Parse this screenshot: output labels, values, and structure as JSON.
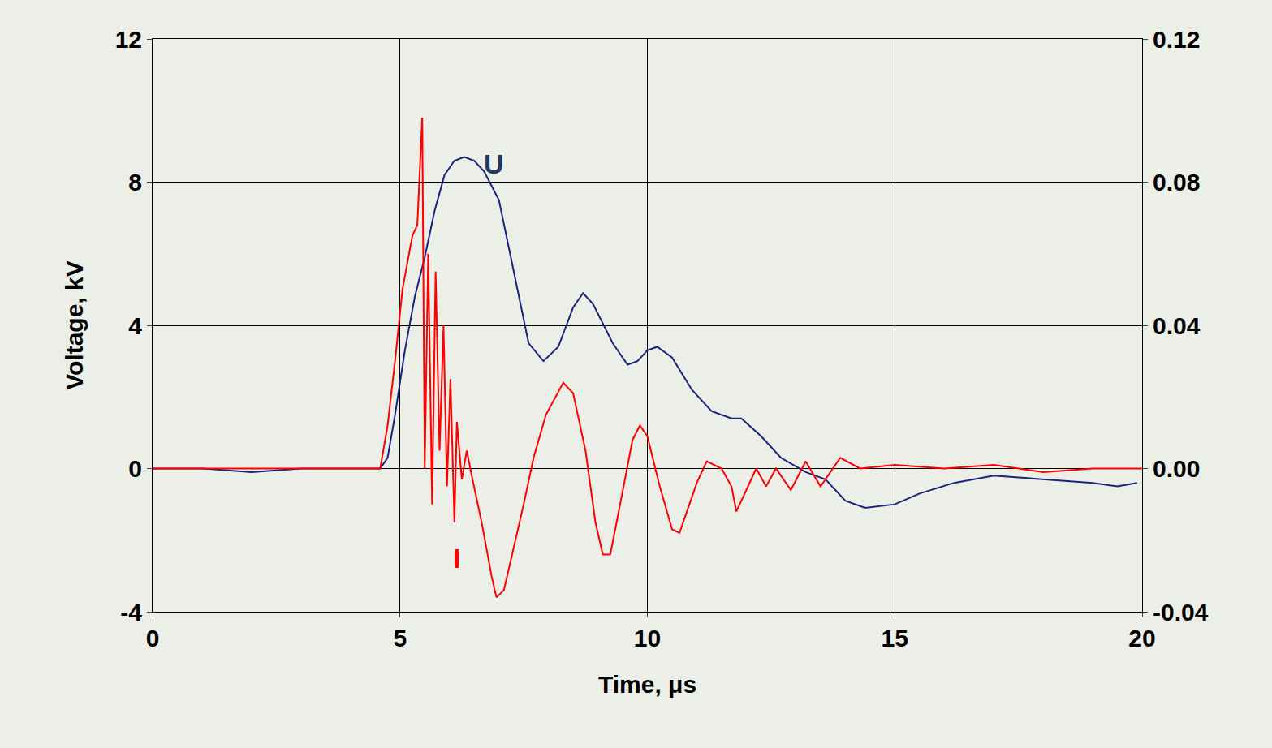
{
  "chart_data": {
    "type": "line",
    "x_label": "Time, μs",
    "y_label": "Voltage, kV",
    "xlim": [
      0,
      20
    ],
    "xticks": [
      0,
      5,
      10,
      15,
      20
    ],
    "ylim": [
      -4,
      12
    ],
    "yticks": [
      -4,
      0,
      4,
      8,
      12
    ],
    "y2lim": [
      -0.04,
      0.12
    ],
    "y2ticks": [
      -0.04,
      {
        "value": 0,
        "label": "0.00"
      },
      0.04,
      0.08,
      0.12
    ],
    "grid": true,
    "series": [
      {
        "color": "#1a237e",
        "axis": "y",
        "x": [
          0,
          1,
          2,
          3,
          4,
          4.6,
          4.75,
          4.9,
          5.1,
          5.3,
          5.5,
          5.7,
          5.9,
          6.1,
          6.3,
          6.5,
          6.7,
          7.0,
          7.3,
          7.6,
          7.9,
          8.2,
          8.5,
          8.7,
          8.9,
          9.3,
          9.6,
          9.8,
          10.0,
          10.2,
          10.5,
          10.9,
          11.3,
          11.7,
          11.9,
          12.3,
          12.7,
          13.2,
          13.6,
          14.0,
          14.4,
          15.0,
          15.5,
          16.2,
          17.0,
          18.0,
          19.0,
          19.5,
          19.9
        ],
        "values": [
          0,
          0,
          -0.1,
          0,
          0,
          0,
          0.3,
          1.5,
          3.3,
          4.8,
          5.9,
          7.2,
          8.2,
          8.6,
          8.7,
          8.6,
          8.3,
          7.5,
          5.5,
          3.5,
          3.0,
          3.4,
          4.5,
          4.9,
          4.6,
          3.5,
          2.9,
          3.0,
          3.3,
          3.4,
          3.1,
          2.2,
          1.6,
          1.4,
          1.4,
          0.9,
          0.3,
          -0.1,
          -0.3,
          -0.9,
          -1.1,
          -1.0,
          -0.7,
          -0.4,
          -0.2,
          -0.3,
          -0.4,
          -0.5,
          -0.4
        ]
      },
      {
        "color": "#ff0000",
        "axis": "y2",
        "x": [
          0,
          1,
          2,
          3,
          4,
          4.6,
          4.75,
          4.9,
          5.05,
          5.25,
          5.35,
          5.45,
          5.5,
          5.57,
          5.65,
          5.72,
          5.8,
          5.88,
          5.95,
          6.02,
          6.1,
          6.15,
          6.25,
          6.35,
          6.45,
          6.65,
          6.85,
          6.95,
          7.1,
          7.3,
          7.5,
          7.7,
          7.95,
          8.3,
          8.5,
          8.75,
          8.95,
          9.1,
          9.25,
          9.45,
          9.7,
          9.85,
          10.0,
          10.25,
          10.5,
          10.65,
          10.85,
          11.0,
          11.2,
          11.5,
          11.7,
          11.8,
          12.0,
          12.2,
          12.4,
          12.6,
          12.9,
          13.2,
          13.5,
          13.9,
          14.3,
          15,
          16,
          17,
          18,
          19,
          20
        ],
        "values": [
          0,
          0,
          0,
          0,
          0,
          0,
          0.012,
          0.03,
          0.05,
          0.065,
          0.068,
          0.098,
          0.0,
          0.06,
          -0.01,
          0.055,
          0.005,
          0.04,
          -0.005,
          0.025,
          -0.015,
          0.013,
          -0.003,
          0.005,
          -0.002,
          -0.015,
          -0.03,
          -0.036,
          -0.034,
          -0.022,
          -0.01,
          0.003,
          0.015,
          0.024,
          0.021,
          0.005,
          -0.015,
          -0.024,
          -0.024,
          -0.01,
          0.008,
          0.012,
          0.009,
          -0.005,
          -0.017,
          -0.018,
          -0.01,
          -0.004,
          0.002,
          0.0,
          -0.005,
          -0.012,
          -0.006,
          0.0,
          -0.005,
          0.0,
          -0.006,
          0.002,
          -0.005,
          0.003,
          0,
          0.001,
          0,
          0.001,
          -0.001,
          0,
          0
        ]
      }
    ],
    "annotations": [
      {
        "text": "U",
        "x": 6.9,
        "y": 8.5,
        "color": "#1f3864"
      },
      {
        "text": "I",
        "x": 6.15,
        "y": -2.5,
        "color": "#ff0000"
      }
    ]
  }
}
